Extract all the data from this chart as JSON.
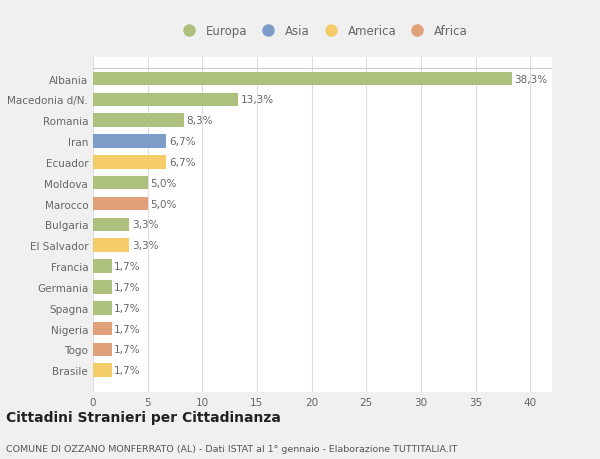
{
  "categories": [
    "Albania",
    "Macedonia d/N.",
    "Romania",
    "Iran",
    "Ecuador",
    "Moldova",
    "Marocco",
    "Bulgaria",
    "El Salvador",
    "Francia",
    "Germania",
    "Spagna",
    "Nigeria",
    "Togo",
    "Brasile"
  ],
  "values": [
    38.3,
    13.3,
    8.3,
    6.7,
    6.7,
    5.0,
    5.0,
    3.3,
    3.3,
    1.7,
    1.7,
    1.7,
    1.7,
    1.7,
    1.7
  ],
  "labels": [
    "38,3%",
    "13,3%",
    "8,3%",
    "6,7%",
    "6,7%",
    "5,0%",
    "5,0%",
    "3,3%",
    "3,3%",
    "1,7%",
    "1,7%",
    "1,7%",
    "1,7%",
    "1,7%",
    "1,7%"
  ],
  "colors": [
    "#adc07d",
    "#adc07d",
    "#adc07d",
    "#7b9dc7",
    "#f5cc6a",
    "#adc07d",
    "#e0a07a",
    "#adc07d",
    "#f5cc6a",
    "#adc07d",
    "#adc07d",
    "#adc07d",
    "#e0a07a",
    "#e0a07a",
    "#f5cc6a"
  ],
  "legend_labels": [
    "Europa",
    "Asia",
    "America",
    "Africa"
  ],
  "legend_colors": [
    "#adc07d",
    "#7b9dc7",
    "#f5cc6a",
    "#e0a07a"
  ],
  "title": "Cittadini Stranieri per Cittadinanza",
  "subtitle": "COMUNE DI OZZANO MONFERRATO (AL) - Dati ISTAT al 1° gennaio - Elaborazione TUTTITALIA.IT",
  "xlim": [
    0,
    42
  ],
  "xticks": [
    0,
    5,
    10,
    15,
    20,
    25,
    30,
    35,
    40
  ],
  "bg_color": "#f0f0f0",
  "plot_bg_color": "#ffffff",
  "grid_color": "#dddddd",
  "label_fontsize": 7.5,
  "tick_fontsize": 7.5,
  "ytick_fontsize": 7.5,
  "title_fontsize": 10,
  "subtitle_fontsize": 6.8,
  "bar_height": 0.65
}
